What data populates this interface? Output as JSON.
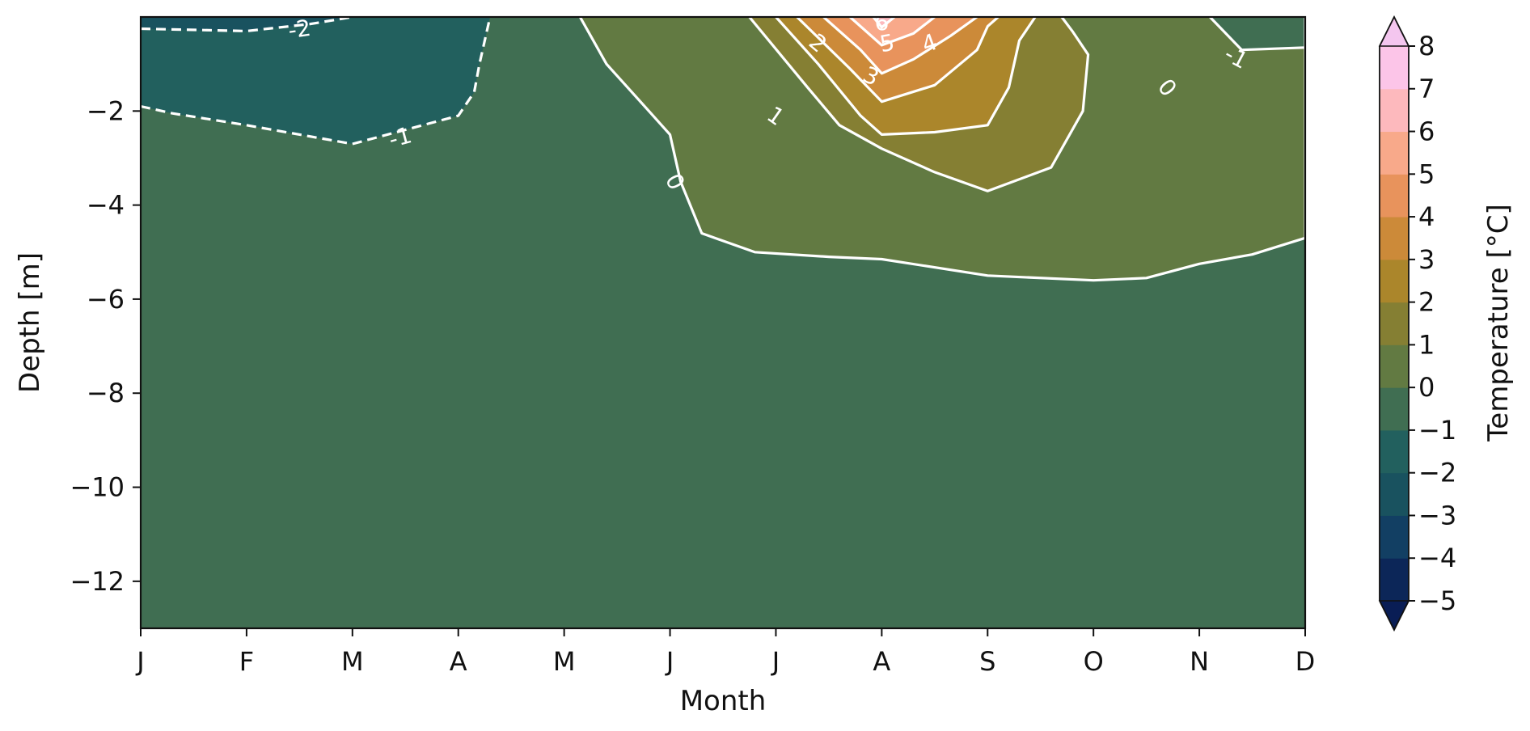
{
  "chart_data": {
    "type": "heatmap",
    "subtype": "filled-contour",
    "xlabel": "Month",
    "ylabel": "Depth [m]",
    "colorbar_label": "Temperature [°C]",
    "x_ticks": [
      "J",
      "F",
      "M",
      "A",
      "M",
      "J",
      "J",
      "A",
      "S",
      "O",
      "N",
      "D"
    ],
    "x_values": [
      1,
      2,
      3,
      4,
      5,
      6,
      7,
      8,
      9,
      10,
      11,
      12
    ],
    "xlim": [
      1,
      12
    ],
    "y_ticks": [
      -2,
      -4,
      -6,
      -8,
      -10,
      -12
    ],
    "y_tick_labels": [
      "−2",
      "−4",
      "−6",
      "−8",
      "−10",
      "−12"
    ],
    "ylim": [
      -13,
      0
    ],
    "levels": [
      -5,
      -4,
      -3,
      -2,
      -1,
      0,
      1,
      2,
      3,
      4,
      5,
      6,
      7,
      8
    ],
    "level_labels": [
      "−5",
      "−4",
      "−3",
      "−2",
      "−1",
      "0",
      "1",
      "2",
      "3",
      "4",
      "5",
      "6",
      "7",
      "8"
    ],
    "colorbar_extend": "both",
    "colors": {
      "under": "#091d55",
      "bands": [
        "#0c2658",
        "#123f63",
        "#19525f",
        "#22605e",
        "#406e52",
        "#627a42",
        "#857f33",
        "#ab862b",
        "#cc8a39",
        "#e8935c",
        "#f8a98a",
        "#fdb9bd",
        "#fcc5e8"
      ],
      "over": "#f4c6ef",
      "contour_line": "#ffffff"
    },
    "labeled_contours": [
      {
        "level": -2,
        "label": "-2",
        "style": "dashed"
      },
      {
        "level": -1,
        "label": "-1",
        "style": "dashed"
      },
      {
        "level": 0,
        "label": "0",
        "style": "solid"
      },
      {
        "level": 1,
        "label": "1",
        "style": "solid"
      },
      {
        "level": 2,
        "label": "2",
        "style": "solid"
      },
      {
        "level": 3,
        "label": "3",
        "style": "solid"
      },
      {
        "level": 4,
        "label": "4",
        "style": "solid"
      },
      {
        "level": 5,
        "label": "5",
        "style": "solid"
      },
      {
        "level": 6,
        "label": "6",
        "style": "solid"
      }
    ],
    "regions": [
      {
        "level_band": [
          -2,
          -1
        ],
        "x": [
          1.0,
          1.3,
          2.0,
          3.0,
          4.0,
          4.15,
          4.2,
          4.3,
          4.1,
          3.5,
          3.0,
          2.0,
          1.5,
          1.0
        ],
        "y": [
          -1.9,
          -2.05,
          -2.3,
          -2.7,
          -2.1,
          -1.6,
          -1.0,
          0.0,
          0.0,
          0.0,
          0.0,
          0.0,
          0.0,
          0.0
        ]
      },
      {
        "level_band": [
          -3,
          -2
        ],
        "x": [
          1.0,
          2.0,
          2.6,
          3.0,
          2.5,
          2.0,
          1.0
        ],
        "y": [
          -0.25,
          -0.3,
          -0.15,
          0.0,
          0.0,
          0.0,
          0.0
        ]
      },
      {
        "level_band": [
          0,
          1
        ],
        "x": [
          5.15,
          5.4,
          5.8,
          6.0,
          6.1,
          6.3,
          6.8,
          7.5,
          8.0,
          9.0,
          10.0,
          10.5,
          11.0,
          11.5,
          12.0,
          12.0,
          11.8,
          11.4,
          11.0,
          10.8,
          10.6,
          10.5,
          10.0,
          8.0,
          6.0,
          5.15
        ],
        "y": [
          0.0,
          -1.0,
          -2.0,
          -2.5,
          -3.5,
          -4.6,
          -5.0,
          -5.1,
          -5.15,
          -5.5,
          -5.6,
          -5.55,
          -5.25,
          -5.05,
          -4.7,
          0.0,
          0.0,
          0.0,
          0.0,
          0.0,
          0.0,
          0.0,
          0.0,
          0.0,
          0.0,
          0.0
        ]
      },
      {
        "level_band": [
          1,
          2
        ],
        "x": [
          6.75,
          7.3,
          7.6,
          8.0,
          8.5,
          9.0,
          9.6,
          9.9,
          9.95,
          9.8,
          9.7,
          8.0,
          7.0,
          6.75
        ],
        "y": [
          0.0,
          -1.5,
          -2.3,
          -2.8,
          -3.3,
          -3.7,
          -3.2,
          -2.0,
          -0.8,
          -0.3,
          0.0,
          0.0,
          0.0,
          0.0
        ]
      },
      {
        "level_band": [
          -1,
          0
        ],
        "x": [
          11.1,
          11.4,
          12.0,
          12.0,
          11.6,
          11.2,
          11.1
        ],
        "y": [
          0.0,
          -0.7,
          -0.65,
          0.0,
          0.0,
          0.0,
          0.0
        ]
      },
      {
        "level_band": [
          2,
          3
        ],
        "x": [
          7.0,
          7.4,
          7.8,
          8.0,
          8.5,
          9.0,
          9.2,
          9.3,
          9.45,
          9.3,
          9.0,
          8.0,
          7.0
        ],
        "y": [
          0.0,
          -1.0,
          -2.1,
          -2.5,
          -2.45,
          -2.3,
          -1.5,
          -0.5,
          0.0,
          0.0,
          0.0,
          0.0,
          0.0
        ]
      },
      {
        "level_band": [
          3,
          4
        ],
        "x": [
          7.2,
          7.7,
          8.0,
          8.5,
          8.9,
          9.0,
          9.1,
          8.9,
          8.5,
          8.0,
          7.2
        ],
        "y": [
          0.0,
          -1.1,
          -1.8,
          -1.45,
          -0.7,
          -0.2,
          0.0,
          0.0,
          0.0,
          0.0,
          0.0
        ]
      },
      {
        "level_band": [
          4,
          5
        ],
        "x": [
          7.45,
          7.8,
          8.0,
          8.3,
          8.65,
          8.9,
          8.6,
          8.0,
          7.45
        ],
        "y": [
          0.0,
          -0.7,
          -1.2,
          -0.9,
          -0.4,
          0.0,
          0.0,
          0.0,
          0.0
        ]
      },
      {
        "level_band": [
          5,
          6
        ],
        "x": [
          7.7,
          8.0,
          8.3,
          8.5,
          8.3,
          8.0,
          7.7
        ],
        "y": [
          0.0,
          -0.6,
          -0.35,
          0.0,
          0.0,
          0.0,
          0.0
        ]
      },
      {
        "level_band": [
          6,
          7
        ],
        "x": [
          7.92,
          8.0,
          8.12,
          8.05,
          7.92
        ],
        "y": [
          0.0,
          -0.22,
          0.0,
          0.0,
          0.0
        ]
      }
    ]
  }
}
